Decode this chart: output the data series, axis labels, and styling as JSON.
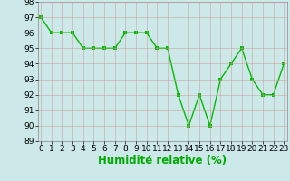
{
  "x": [
    0,
    1,
    2,
    3,
    4,
    5,
    6,
    7,
    8,
    9,
    10,
    11,
    12,
    13,
    14,
    15,
    16,
    17,
    18,
    19,
    20,
    21,
    22,
    23
  ],
  "y": [
    97,
    96,
    96,
    96,
    95,
    95,
    95,
    95,
    96,
    96,
    96,
    95,
    95,
    92,
    90,
    92,
    90,
    93,
    94,
    95,
    93,
    92,
    92,
    94
  ],
  "line_color": "#00bb00",
  "marker_color": "#00bb00",
  "bg_color": "#cce8e8",
  "grid_color": "#bbbbcc",
  "xlabel": "Humidité relative (%)",
  "xlabel_color": "#00aa00",
  "ylim": [
    89,
    98
  ],
  "xlim": [
    -0.3,
    23.3
  ],
  "yticks": [
    89,
    90,
    91,
    92,
    93,
    94,
    95,
    96,
    97,
    98
  ],
  "xticks": [
    0,
    1,
    2,
    3,
    4,
    5,
    6,
    7,
    8,
    9,
    10,
    11,
    12,
    13,
    14,
    15,
    16,
    17,
    18,
    19,
    20,
    21,
    22,
    23
  ],
  "tick_fontsize": 6.5,
  "xlabel_fontsize": 8.5,
  "line_width": 1.0,
  "marker_size": 3.0
}
